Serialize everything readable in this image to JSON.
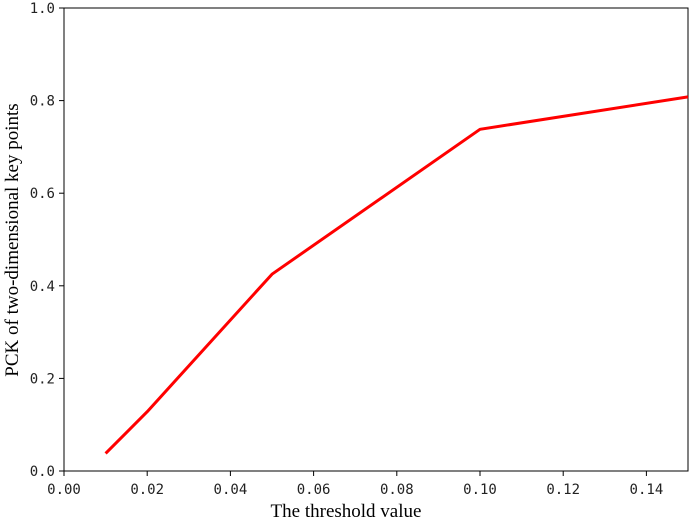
{
  "chart_data": {
    "type": "line",
    "xlabel": "The threshold value",
    "ylabel": "PCK of two-dimensional key points",
    "xlim": [
      0.0,
      0.15
    ],
    "ylim": [
      0.0,
      1.0
    ],
    "xticks": [
      "0.00",
      "0.02",
      "0.04",
      "0.06",
      "0.08",
      "0.10",
      "0.12",
      "0.14"
    ],
    "yticks": [
      "0.0",
      "0.2",
      "0.4",
      "0.6",
      "0.8",
      "1.0"
    ],
    "grid": false,
    "series": [
      {
        "color": "#ff0000",
        "x": [
          0.01,
          0.02,
          0.05,
          0.1,
          0.15
        ],
        "y": [
          0.038,
          0.128,
          0.425,
          0.738,
          0.808
        ]
      }
    ]
  }
}
